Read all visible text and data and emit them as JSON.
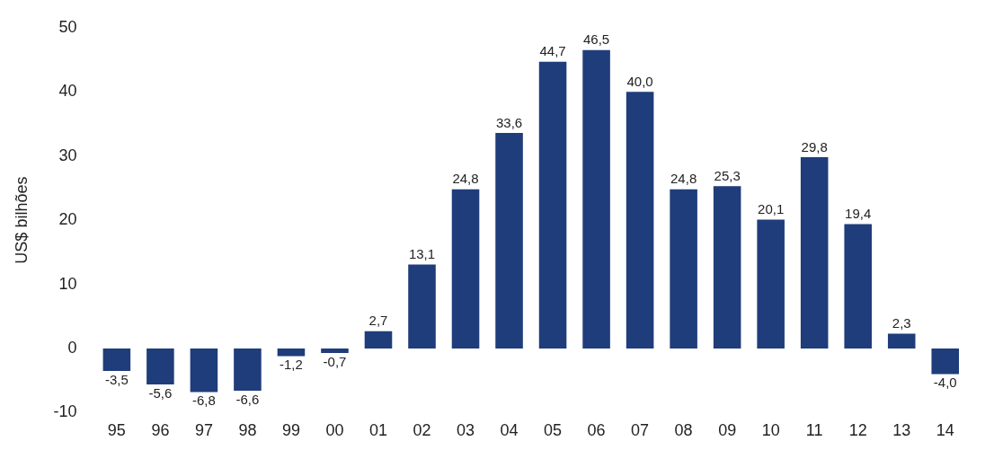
{
  "chart_data": {
    "type": "bar",
    "ylabel": "US$ bilhões",
    "categories": [
      "95",
      "96",
      "97",
      "98",
      "99",
      "00",
      "01",
      "02",
      "03",
      "04",
      "05",
      "06",
      "07",
      "08",
      "09",
      "10",
      "11",
      "12",
      "13",
      "14"
    ],
    "values": [
      -3.5,
      -5.6,
      -6.8,
      -6.6,
      -1.2,
      -0.7,
      2.7,
      13.1,
      24.8,
      33.6,
      44.7,
      46.5,
      40.0,
      24.8,
      25.3,
      20.1,
      29.8,
      19.4,
      2.3,
      -4.0
    ],
    "value_labels": [
      "-3,5",
      "-5,6",
      "-6,8",
      "-6,6",
      "-1,2",
      "-0,7",
      "2,7",
      "13,1",
      "24,8",
      "33,6",
      "44,7",
      "46,5",
      "40,0",
      "24,8",
      "25,3",
      "20,1",
      "29,8",
      "19,4",
      "2,3",
      "-4,0"
    ],
    "color": "#1f3d7a",
    "ylim": [
      -10,
      50
    ],
    "yticks": [
      -10,
      0,
      10,
      20,
      30,
      40,
      50
    ],
    "grid": false
  }
}
